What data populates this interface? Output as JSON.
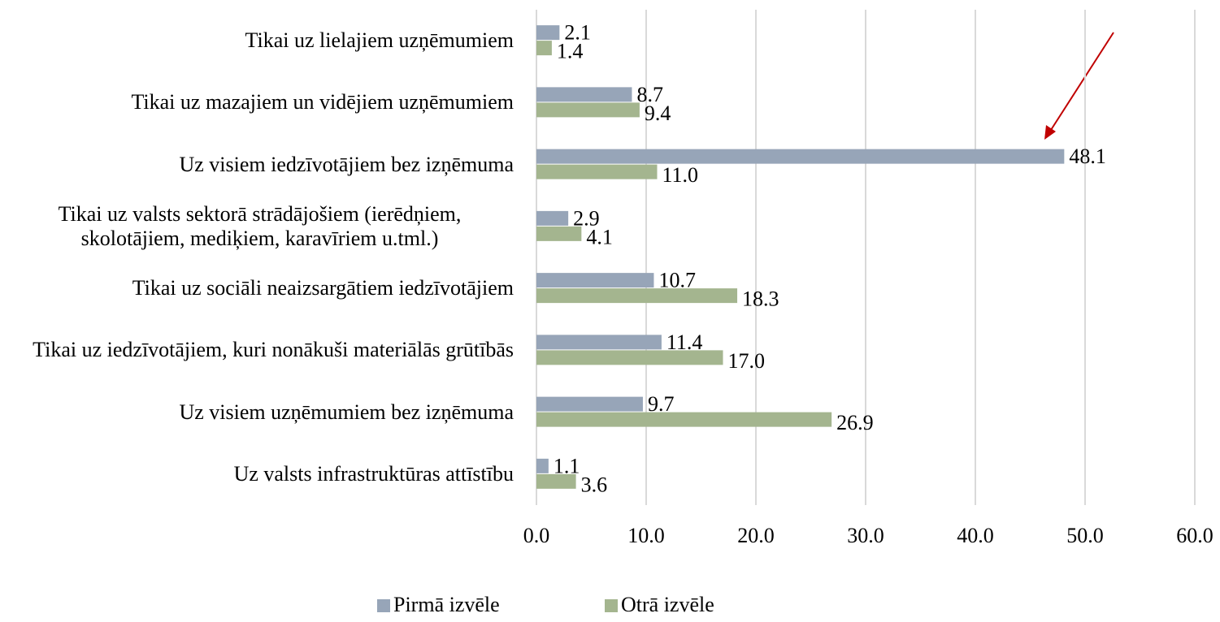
{
  "chart_data": {
    "type": "hbar",
    "categories": [
      "Tikai uz lielajiem uzņēmumiem",
      "Tikai uz mazajiem un vidējiem uzņēmumiem",
      "Uz visiem iedzīvotājiem bez izņēmuma",
      "Tikai uz valsts sektorā strādājošiem (ierēdņiem, skolotājiem, mediķiem, karavīriem u.tml.)",
      "Tikai uz sociāli neaizsargātiem iedzīvotājiem",
      "Tikai uz iedzīvotājiem, kuri nonākuši materiālās grūtībās",
      "Uz visiem uzņēmumiem bez izņēmuma",
      "Uz valsts infrastruktūras attīstību"
    ],
    "series": [
      {
        "name": "Pirmā izvēle",
        "color": "#97a5b8",
        "values": [
          2.1,
          8.7,
          48.1,
          2.9,
          10.7,
          11.4,
          9.7,
          1.1
        ],
        "value_labels": [
          "2.1",
          "8.7",
          "48.1",
          "2.9",
          "10.7",
          "11.4",
          "9.7",
          "1.1"
        ]
      },
      {
        "name": "Otrā izvēle",
        "color": "#a4b58f",
        "values": [
          1.4,
          9.4,
          11.0,
          4.1,
          18.3,
          17.0,
          26.9,
          3.6
        ],
        "value_labels": [
          "1.4",
          "9.4",
          "11.0",
          "4.1",
          "18.3",
          "17.0",
          "26.9",
          "3.6"
        ]
      }
    ],
    "xlim": [
      0,
      60
    ],
    "xticks": [
      {
        "value": 0,
        "label": "0.0"
      },
      {
        "value": 10,
        "label": "10.0"
      },
      {
        "value": 20,
        "label": "20.0"
      },
      {
        "value": 30,
        "label": "30.0"
      },
      {
        "value": 40,
        "label": "40.0"
      },
      {
        "value": 50,
        "label": "50.0"
      },
      {
        "value": 60,
        "label": "60.0"
      }
    ],
    "grid": true,
    "legend": "bottom"
  }
}
